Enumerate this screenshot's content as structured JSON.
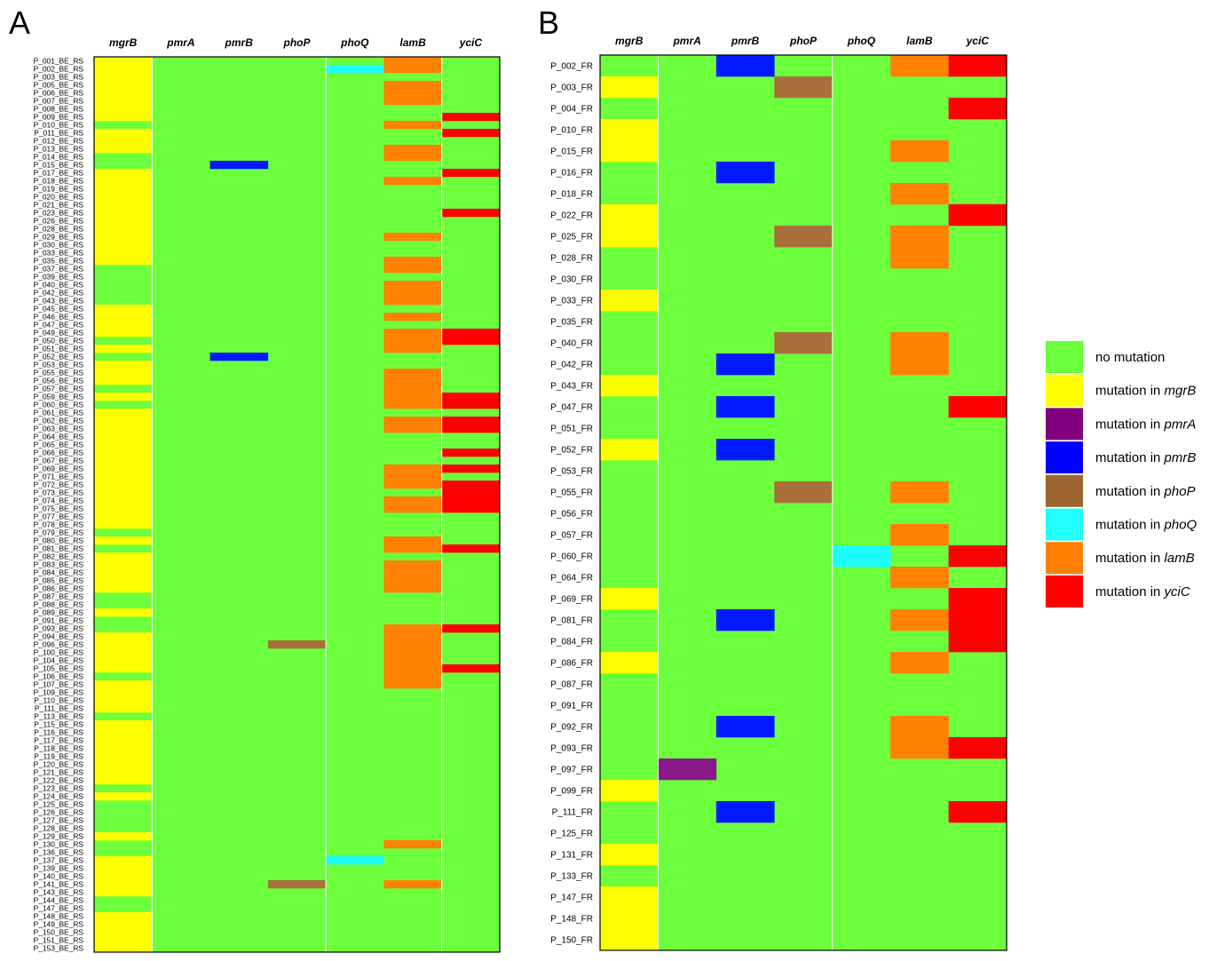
{
  "colors": {
    "none": "#6bff3c",
    "mgrB": "#ffff00",
    "pmrA": "#8a1a8a",
    "pmrB": "#0019ff",
    "phoP": "#a86f3a",
    "phoQ": "#1dfdff",
    "lamB": "#ff8205",
    "yciC": "#ff0000",
    "legend_pmrA": "#800080",
    "legend_pmrB": "#0000ff",
    "legend_phoP": "#9c6530",
    "legend_phoQ": "#22ffff",
    "legend_lamB": "#ff8000",
    "legend_yciC": "#ff0000"
  },
  "legend": [
    {
      "key": "none",
      "pre": "no mutation",
      "gene": ""
    },
    {
      "key": "mgrB",
      "pre": "mutation in ",
      "gene": "mgrB"
    },
    {
      "key": "legend_pmrA",
      "pre": "mutation in ",
      "gene": "pmrA"
    },
    {
      "key": "legend_pmrB",
      "pre": "mutation in ",
      "gene": "pmrB"
    },
    {
      "key": "legend_phoP",
      "pre": "mutation in ",
      "gene": "phoP"
    },
    {
      "key": "legend_phoQ",
      "pre": "mutation in ",
      "gene": "phoQ"
    },
    {
      "key": "legend_lamB",
      "pre": "mutation in ",
      "gene": "lamB"
    },
    {
      "key": "legend_yciC",
      "pre": "mutation in ",
      "gene": "yciC"
    }
  ],
  "chart_data": [
    {
      "type": "heatmap",
      "panel_label": "A",
      "columns": [
        "mgrB",
        "pmrA",
        "pmrB",
        "phoP",
        "phoQ",
        "lamB",
        "yciC"
      ],
      "rows": [
        "P_001_BE_RS",
        "P_002_BE_RS",
        "P_003_BE_RS",
        "P_005_BE_RS",
        "P_006_BE_RS",
        "P_007_BE_RS",
        "P_008_BE_RS",
        "P_009_BE_RS",
        "P_010_BE_RS",
        "P_011_BE_RS",
        "P_012_BE_RS",
        "P_013_BE_RS",
        "P_014_BE_RS",
        "P_015_BE_RS",
        "P_017_BE_RS",
        "P_018_BE_RS",
        "P_019_BE_RS",
        "P_020_BE_RS",
        "P_021_BE_RS",
        "P_023_BE_RS",
        "P_026_BE_RS",
        "P_028_BE_RS",
        "P_029_BE_RS",
        "P_030_BE_RS",
        "P_033_BE_RS",
        "P_035_BE_RS",
        "P_037_BE_RS",
        "P_039_BE_RS",
        "P_040_BE_RS",
        "P_042_BE_RS",
        "P_043_BE_RS",
        "P_045_BE_RS",
        "P_046_BE_RS",
        "P_047_BE_RS",
        "P_049_BE_RS",
        "P_050_BE_RS",
        "P_051_BE_RS",
        "P_052_BE_RS",
        "P_053_BE_RS",
        "P_055_BE_RS",
        "P_056_BE_RS",
        "P_057_BE_RS",
        "P_059_BE_RS",
        "P_060_BE_RS",
        "P_061_BE_RS",
        "P_062_BE_RS",
        "P_063_BE_RS",
        "P_064_BE_RS",
        "P_065_BE_RS",
        "P_066_BE_RS",
        "P_067_BE_RS",
        "P_069_BE_RS",
        "P_071_BE_RS",
        "P_072_BE_RS",
        "P_073_BE_RS",
        "P_074_BE_RS",
        "P_075_BE_RS",
        "P_077_BE_RS",
        "P_078_BE_RS",
        "P_079_BE_RS",
        "P_080_BE_RS",
        "P_081_BE_RS",
        "P_082_BE_RS",
        "P_083_BE_RS",
        "P_084_BE_RS",
        "P_085_BE_RS",
        "P_086_BE_RS",
        "P_087_BE_RS",
        "P_088_BE_RS",
        "P_089_BE_RS",
        "P_091_BE_RS",
        "P_093_BE_RS",
        "P_094_BE_RS",
        "P_096_BE_RS",
        "P_100_BE_RS",
        "P_104_BE_RS",
        "P_105_BE_RS",
        "P_106_BE_RS",
        "P_107_BE_RS",
        "P_109_BE_RS",
        "P_110_BE_RS",
        "P_111_BE_RS",
        "P_113_BE_RS",
        "P_115_BE_RS",
        "P_116_BE_RS",
        "P_117_BE_RS",
        "P_118_BE_RS",
        "P_119_BE_RS",
        "P_120_BE_RS",
        "P_121_BE_RS",
        "P_122_BE_RS",
        "P_123_BE_RS",
        "P_124_BE_RS",
        "P_125_BE_RS",
        "P_126_BE_RS",
        "P_127_BE_RS",
        "P_128_BE_RS",
        "P_129_BE_RS",
        "P_130_BE_RS",
        "P_136_BE_RS",
        "P_137_BE_RS",
        "P_139_BE_RS",
        "P_140_BE_RS",
        "P_141_BE_RS",
        "P_143_BE_RS",
        "P_144_BE_RS",
        "P_147_BE_RS",
        "P_148_BE_RS",
        "P_149_BE_RS",
        "P_150_BE_RS",
        "P_151_BE_RS",
        "P_153_BE_RS"
      ],
      "mutations": {
        "mgrB": [
          0,
          1,
          2,
          3,
          4,
          5,
          6,
          7,
          9,
          10,
          11,
          14,
          15,
          16,
          17,
          18,
          19,
          20,
          21,
          22,
          23,
          24,
          25,
          31,
          32,
          33,
          34,
          36,
          38,
          39,
          40,
          42,
          44,
          45,
          46,
          47,
          48,
          49,
          50,
          51,
          52,
          53,
          54,
          55,
          56,
          57,
          58,
          60,
          62,
          63,
          64,
          65,
          66,
          69,
          72,
          73,
          74,
          75,
          76,
          78,
          79,
          80,
          81,
          83,
          84,
          85,
          86,
          87,
          88,
          89,
          90,
          92,
          97,
          100,
          101,
          102,
          103,
          104,
          107,
          108,
          109,
          110,
          111
        ],
        "pmrA": [],
        "pmrB": [
          13,
          37
        ],
        "phoP": [
          73,
          103
        ],
        "phoQ": [
          1,
          100
        ],
        "lamB": [
          0,
          1,
          3,
          4,
          5,
          8,
          11,
          12,
          15,
          22,
          25,
          26,
          28,
          29,
          30,
          32,
          34,
          35,
          36,
          39,
          40,
          41,
          42,
          43,
          45,
          46,
          51,
          52,
          53,
          55,
          56,
          60,
          61,
          63,
          64,
          65,
          66,
          71,
          72,
          73,
          74,
          75,
          76,
          77,
          78,
          98,
          103
        ],
        "yciC": [
          7,
          9,
          14,
          19,
          34,
          35,
          42,
          43,
          45,
          46,
          49,
          51,
          53,
          54,
          55,
          56,
          61,
          71,
          76
        ]
      }
    },
    {
      "type": "heatmap",
      "panel_label": "B",
      "columns": [
        "mgrB",
        "pmrA",
        "pmrB",
        "phoP",
        "phoQ",
        "lamB",
        "yciC"
      ],
      "rows": [
        "P_002_FR",
        "P_003_FR",
        "P_004_FR",
        "P_010_FR",
        "P_015_FR",
        "P_016_FR",
        "P_018_FR",
        "P_022_FR",
        "P_025_FR",
        "P_028_FR",
        "P_030_FR",
        "P_033_FR",
        "P_035_FR",
        "P_040_FR",
        "P_042_FR",
        "P_043_FR",
        "P_047_FR",
        "P_051_FR",
        "P_052_FR",
        "P_053_FR",
        "P_055_FR",
        "P_056_FR",
        "P_057_FR",
        "P_060_FR",
        "P_064_FR",
        "P_069_FR",
        "P_081_FR",
        "P_084_FR",
        "P_086_FR",
        "P_087_FR",
        "P_091_FR",
        "P_092_FR",
        "P_093_FR",
        "P_097_FR",
        "P_099_FR",
        "P_111_FR",
        "P_125_FR",
        "P_131_FR",
        "P_133_FR",
        "P_147_FR",
        "P_148_FR",
        "P_150_FR"
      ],
      "mutations": {
        "mgrB": [
          1,
          3,
          4,
          7,
          8,
          11,
          15,
          18,
          25,
          28,
          34,
          37,
          39,
          40,
          41
        ],
        "pmrA": [
          33
        ],
        "pmrB": [
          0,
          5,
          14,
          16,
          18,
          26,
          31,
          35
        ],
        "phoP": [
          1,
          8,
          13,
          20
        ],
        "phoQ": [
          23
        ],
        "lamB": [
          0,
          4,
          6,
          8,
          9,
          13,
          14,
          20,
          22,
          24,
          26,
          28,
          31,
          32
        ],
        "yciC": [
          0,
          2,
          7,
          16,
          23,
          25,
          26,
          27,
          32,
          35
        ]
      }
    }
  ]
}
